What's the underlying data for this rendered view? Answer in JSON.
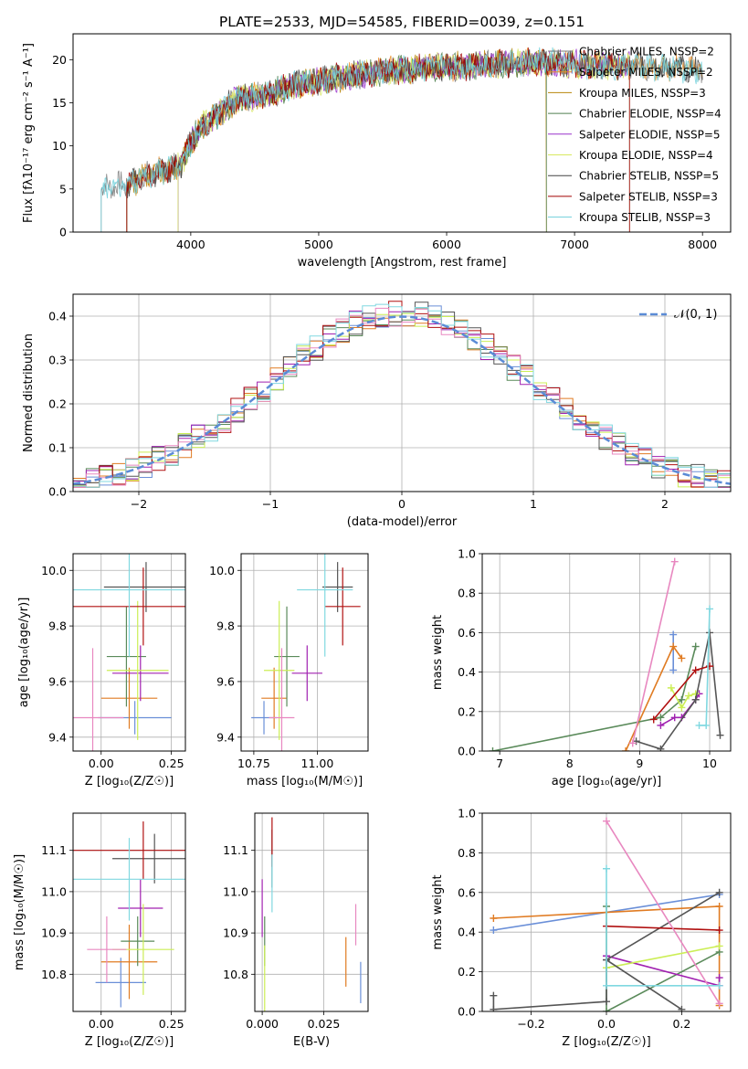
{
  "colors": {
    "series": [
      "#6a8fd8",
      "#e07b22",
      "#5a8a5a",
      "#a020b0",
      "#ccee55",
      "#555555",
      "#b01010",
      "#e888c0",
      "#80d8e0"
    ],
    "spec": [
      "#7a7a7a",
      "#e8902a",
      "#b8860b",
      "#4f7f4f",
      "#9932cc",
      "#d8e860",
      "#444444",
      "#a00000",
      "#70d0dc"
    ],
    "gauss": "#5b8bd6",
    "grid": "#b0b0b0"
  },
  "chart_data": [
    {
      "id": "spectrum",
      "type": "line",
      "title": "PLATE=2533, MJD=54585, FIBERID=0039, z=0.151",
      "xlabel": "wavelength [Angstrom, rest frame]",
      "ylabel": "Flux [fλ10⁻¹⁷ erg cm⁻² s⁻¹ A⁻¹]",
      "xlim": [
        3080,
        8220
      ],
      "ylim": [
        0,
        23
      ],
      "xticks": [
        "4000",
        "5000",
        "6000",
        "7000",
        "8000"
      ],
      "yticks": [
        "0",
        "5",
        "10",
        "15",
        "20"
      ],
      "grid": false,
      "legend_position": "upper-right",
      "legend": [
        "Chabrier MILES, N_SSP=2",
        "Salpeter MILES, N_SSP=2",
        "Kroupa MILES, N_SSP=3",
        "Chabrier ELODIE, N_SSP=4",
        "Salpeter ELODIE, N_SSP=5",
        "Kroupa ELODIE, N_SSP=4",
        "Chabrier STELIB, N_SSP=5",
        "Salpeter STELIB, N_SSP=3",
        "Kroupa STELIB, N_SSP=3"
      ],
      "continuum": {
        "x": [
          3300,
          3400,
          3500,
          3600,
          3700,
          3800,
          3900,
          3950,
          4000,
          4100,
          4200,
          4300,
          4400,
          4500,
          4600,
          4800,
          5000,
          5200,
          5400,
          5600,
          5800,
          6000,
          6200,
          6400,
          6600,
          6800,
          7000,
          7200,
          7400,
          7600,
          7800,
          8000
        ],
        "y": [
          5.2,
          5.4,
          5.5,
          6.2,
          6.8,
          7.2,
          7.5,
          8.5,
          10.5,
          12.5,
          13.5,
          14.8,
          15.5,
          15.8,
          16.0,
          17.0,
          17.6,
          18.0,
          18.5,
          18.8,
          19.0,
          19.2,
          19.3,
          19.5,
          19.6,
          19.7,
          19.5,
          19.4,
          19.3,
          19.2,
          19.0,
          18.8
        ]
      },
      "start_wavelengths": [
        3300,
        3500,
        3500,
        3900,
        3900,
        3900,
        3500,
        3500,
        3300
      ],
      "end_wavelengths": [
        8000,
        8000,
        6780,
        6780,
        7430,
        7430,
        8000,
        7430,
        8000
      ]
    },
    {
      "id": "residuals",
      "type": "histogram",
      "xlabel": "(data-model)/error",
      "ylabel": "Normed distribution",
      "xlim": [
        -2.5,
        2.5
      ],
      "ylim": [
        0,
        0.45
      ],
      "xticks": [
        "−2",
        "−1",
        "0",
        "1",
        "2"
      ],
      "yticks": [
        "0.0",
        "0.1",
        "0.2",
        "0.3",
        "0.4"
      ],
      "grid": true,
      "legend": [
        "𝒩(0, 1)"
      ],
      "legend_position": "upper-right",
      "bin_width": 0.1
    },
    {
      "id": "age-vs-Z",
      "type": "errorbar",
      "xlabel": "Z [log₁₀(Z/Z☉)]",
      "ylabel": "age  [log₁₀(age/yr)]",
      "xlim": [
        -0.1,
        0.3
      ],
      "ylim": [
        9.35,
        10.06
      ],
      "xticks": [
        "0.00",
        "0.25"
      ],
      "yticks": [
        "9.4",
        "9.6",
        "9.8",
        "10.0"
      ],
      "grid": true,
      "points": [
        {
          "x": 0.12,
          "xerr": 0.13,
          "y": 9.47,
          "yerr": 0.06
        },
        {
          "x": 0.1,
          "xerr": 0.1,
          "y": 9.54,
          "yerr": 0.11
        },
        {
          "x": 0.09,
          "xerr": 0.07,
          "y": 9.69,
          "yerr": 0.18
        },
        {
          "x": 0.14,
          "xerr": 0.1,
          "y": 9.63,
          "yerr": 0.1
        },
        {
          "x": 0.13,
          "xerr": 0.11,
          "y": 9.64,
          "yerr": 0.25
        },
        {
          "x": 0.16,
          "xerr": 0.15,
          "y": 9.94,
          "yerr": 0.09
        },
        {
          "x": 0.15,
          "xerr": 0.25,
          "y": 9.87,
          "yerr": 0.14
        },
        {
          "x": -0.03,
          "xerr": 0.11,
          "y": 9.47,
          "yerr": 0.25
        },
        {
          "x": 0.1,
          "xerr": 0.26,
          "y": 9.93,
          "yerr": 0.24
        }
      ]
    },
    {
      "id": "age-vs-mass",
      "type": "errorbar",
      "xlabel": "mass [log₁₀(M/M☉)]",
      "xlim": [
        10.7,
        11.2
      ],
      "ylim": [
        9.35,
        10.06
      ],
      "xticks": [
        "10.75",
        "11.00"
      ],
      "yticks": [
        "9.4",
        "9.6",
        "9.8",
        "10.0"
      ],
      "grid": true,
      "points": [
        {
          "x": 10.79,
          "xerr": 0.05,
          "y": 9.47,
          "yerr": 0.06
        },
        {
          "x": 10.83,
          "xerr": 0.05,
          "y": 9.54,
          "yerr": 0.11
        },
        {
          "x": 10.88,
          "xerr": 0.05,
          "y": 9.69,
          "yerr": 0.18
        },
        {
          "x": 10.96,
          "xerr": 0.06,
          "y": 9.63,
          "yerr": 0.1
        },
        {
          "x": 10.85,
          "xerr": 0.06,
          "y": 9.64,
          "yerr": 0.25
        },
        {
          "x": 11.08,
          "xerr": 0.06,
          "y": 9.94,
          "yerr": 0.09
        },
        {
          "x": 11.1,
          "xerr": 0.07,
          "y": 9.87,
          "yerr": 0.14
        },
        {
          "x": 10.86,
          "xerr": 0.05,
          "y": 9.47,
          "yerr": 0.25
        },
        {
          "x": 11.03,
          "xerr": 0.11,
          "y": 9.93,
          "yerr": 0.24
        }
      ]
    },
    {
      "id": "weight-vs-age",
      "type": "line",
      "xlabel": "age  [log₁₀(age/yr)]",
      "ylabel": "mass weight",
      "xlim": [
        6.75,
        10.3
      ],
      "ylim": [
        0,
        1.0
      ],
      "xticks": [
        "7",
        "8",
        "9",
        "10"
      ],
      "yticks": [
        "0.0",
        "0.2",
        "0.4",
        "0.6",
        "0.8",
        "1.0"
      ],
      "grid": true,
      "series": [
        {
          "points": [
            [
              9.48,
              0.59
            ],
            [
              9.48,
              0.41
            ]
          ]
        },
        {
          "points": [
            [
              8.8,
              0.0
            ],
            [
              9.48,
              0.53
            ],
            [
              9.6,
              0.47
            ]
          ]
        },
        {
          "points": [
            [
              6.9,
              0.0
            ],
            [
              9.3,
              0.17
            ],
            [
              9.6,
              0.26
            ],
            [
              9.8,
              0.53
            ]
          ]
        },
        {
          "points": [
            [
              9.3,
              0.13
            ],
            [
              9.5,
              0.17
            ],
            [
              9.6,
              0.17
            ],
            [
              9.8,
              0.26
            ],
            [
              9.85,
              0.29
            ]
          ]
        },
        {
          "points": [
            [
              9.45,
              0.32
            ],
            [
              9.6,
              0.22
            ],
            [
              9.7,
              0.28
            ],
            [
              9.8,
              0.29
            ]
          ]
        },
        {
          "points": [
            [
              8.95,
              0.05
            ],
            [
              9.3,
              0.01
            ],
            [
              9.8,
              0.26
            ],
            [
              10.0,
              0.6
            ],
            [
              10.15,
              0.08
            ]
          ]
        },
        {
          "points": [
            [
              9.2,
              0.16
            ],
            [
              9.8,
              0.41
            ],
            [
              10.0,
              0.43
            ]
          ]
        },
        {
          "points": [
            [
              8.9,
              0.04
            ],
            [
              9.5,
              0.96
            ]
          ]
        },
        {
          "points": [
            [
              9.85,
              0.13
            ],
            [
              9.95,
              0.13
            ],
            [
              10.0,
              0.72
            ]
          ]
        }
      ]
    },
    {
      "id": "mass-vs-Z",
      "type": "errorbar",
      "xlabel": "Z [log₁₀(Z/Z☉)]",
      "ylabel": "mass [log₁₀(M/M☉)]",
      "xlim": [
        -0.1,
        0.3
      ],
      "ylim": [
        10.71,
        11.19
      ],
      "xticks": [
        "0.00",
        "0.25"
      ],
      "yticks": [
        "10.8",
        "10.9",
        "11.0",
        "11.1"
      ],
      "grid": true,
      "points": [
        {
          "x": 0.07,
          "xerr": 0.09,
          "y": 10.78,
          "yerr": 0.06
        },
        {
          "x": 0.1,
          "xerr": 0.1,
          "y": 10.83,
          "yerr": 0.09
        },
        {
          "x": 0.13,
          "xerr": 0.06,
          "y": 10.88,
          "yerr": 0.06
        },
        {
          "x": 0.14,
          "xerr": 0.08,
          "y": 10.96,
          "yerr": 0.07
        },
        {
          "x": 0.15,
          "xerr": 0.11,
          "y": 10.86,
          "yerr": 0.11
        },
        {
          "x": 0.19,
          "xerr": 0.15,
          "y": 11.08,
          "yerr": 0.06
        },
        {
          "x": 0.15,
          "xerr": 0.25,
          "y": 11.1,
          "yerr": 0.07
        },
        {
          "x": 0.02,
          "xerr": 0.07,
          "y": 10.86,
          "yerr": 0.08
        },
        {
          "x": 0.1,
          "xerr": 0.27,
          "y": 11.03,
          "yerr": 0.1
        }
      ]
    },
    {
      "id": "mass-vs-EBV",
      "type": "errorbar",
      "xlabel": "E(B-V)",
      "xlim": [
        -0.003,
        0.043
      ],
      "ylim": [
        10.71,
        11.19
      ],
      "xticks": [
        "0.000",
        "0.025"
      ],
      "yticks": [
        "10.8",
        "10.9",
        "11.0",
        "11.1"
      ],
      "grid": true,
      "points": [
        {
          "x": 0.04,
          "xerr": 0.0,
          "y": 10.78,
          "yerr": 0.05
        },
        {
          "x": 0.034,
          "xerr": 0.0,
          "y": 10.83,
          "yerr": 0.06
        },
        {
          "x": 0.001,
          "xerr": 0.0,
          "y": 10.88,
          "yerr": 0.06
        },
        {
          "x": 0.0,
          "xerr": 0.0,
          "y": 10.96,
          "yerr": 0.07
        },
        {
          "x": 0.001,
          "xerr": 0.0,
          "y": 10.79,
          "yerr": 0.08
        },
        {
          "x": 0.004,
          "xerr": 0.0,
          "y": 11.08,
          "yerr": 0.07
        },
        {
          "x": 0.004,
          "xerr": 0.0,
          "y": 11.12,
          "yerr": 0.06
        },
        {
          "x": 0.038,
          "xerr": 0.0,
          "y": 10.92,
          "yerr": 0.05
        },
        {
          "x": 0.004,
          "xerr": 0.0,
          "y": 11.02,
          "yerr": 0.07
        }
      ]
    },
    {
      "id": "weight-vs-Z",
      "type": "line",
      "xlabel": "Z [log₁₀(Z/Z☉)]",
      "ylabel": "mass weight",
      "xlim": [
        -0.33,
        0.33
      ],
      "ylim": [
        0,
        1.0
      ],
      "xticks": [
        "−0.2",
        "0.0",
        "0.2"
      ],
      "yticks": [
        "0.0",
        "0.2",
        "0.4",
        "0.6",
        "0.8",
        "1.0"
      ],
      "grid": true,
      "series": [
        {
          "points": [
            [
              -0.3,
              0.41
            ],
            [
              0.3,
              0.59
            ]
          ]
        },
        {
          "points": [
            [
              -0.3,
              0.47
            ],
            [
              0.3,
              0.53
            ],
            [
              0.3,
              0.03
            ]
          ]
        },
        {
          "points": [
            [
              0.0,
              0.53
            ],
            [
              0.0,
              0.0
            ],
            [
              0.3,
              0.3
            ]
          ]
        },
        {
          "points": [
            [
              0.0,
              0.28
            ],
            [
              0.3,
              0.13
            ],
            [
              0.3,
              0.17
            ]
          ]
        },
        {
          "points": [
            [
              0.0,
              0.22
            ],
            [
              0.3,
              0.33
            ]
          ]
        },
        {
          "points": [
            [
              -0.3,
              0.08
            ],
            [
              -0.3,
              0.01
            ],
            [
              0.0,
              0.05
            ],
            [
              0.0,
              0.26
            ],
            [
              0.3,
              0.6
            ],
            [
              0.0,
              0.26
            ],
            [
              0.2,
              0.01
            ]
          ]
        },
        {
          "points": [
            [
              0.0,
              0.43
            ],
            [
              0.3,
              0.41
            ]
          ]
        },
        {
          "points": [
            [
              0.0,
              0.96
            ],
            [
              0.3,
              0.04
            ]
          ]
        },
        {
          "points": [
            [
              0.0,
              0.72
            ],
            [
              0.0,
              0.13
            ],
            [
              0.3,
              0.13
            ]
          ]
        }
      ]
    }
  ]
}
